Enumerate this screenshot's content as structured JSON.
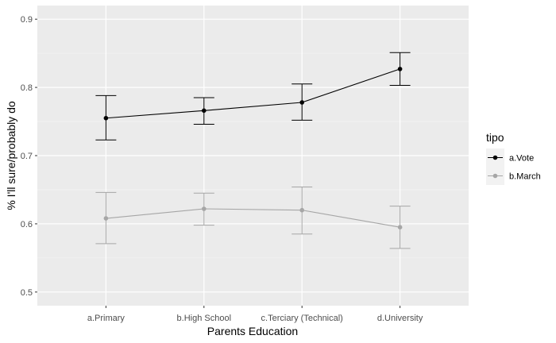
{
  "chart_data": {
    "type": "line",
    "title": "",
    "xlabel": "Parents Education",
    "ylabel": "% I'll sure/probably do",
    "categories": [
      "a.Primary",
      "b.High School",
      "c.Terciary (Technical)",
      "d.University"
    ],
    "ylim": [
      0.48,
      0.92
    ],
    "yticks": [
      0.5,
      0.6,
      0.7,
      0.8,
      0.9
    ],
    "grid": true,
    "legend_position": "right",
    "legend_title": "tipo",
    "series": [
      {
        "name": "a.Vote",
        "color": "#000000",
        "values": [
          0.755,
          0.766,
          0.778,
          0.827
        ],
        "lower": [
          0.723,
          0.746,
          0.752,
          0.803
        ],
        "upper": [
          0.788,
          0.785,
          0.805,
          0.851
        ]
      },
      {
        "name": "b.March",
        "color": "#a6a6a6",
        "values": [
          0.608,
          0.622,
          0.62,
          0.595
        ],
        "lower": [
          0.571,
          0.598,
          0.585,
          0.564
        ],
        "upper": [
          0.646,
          0.645,
          0.654,
          0.626
        ]
      }
    ]
  }
}
